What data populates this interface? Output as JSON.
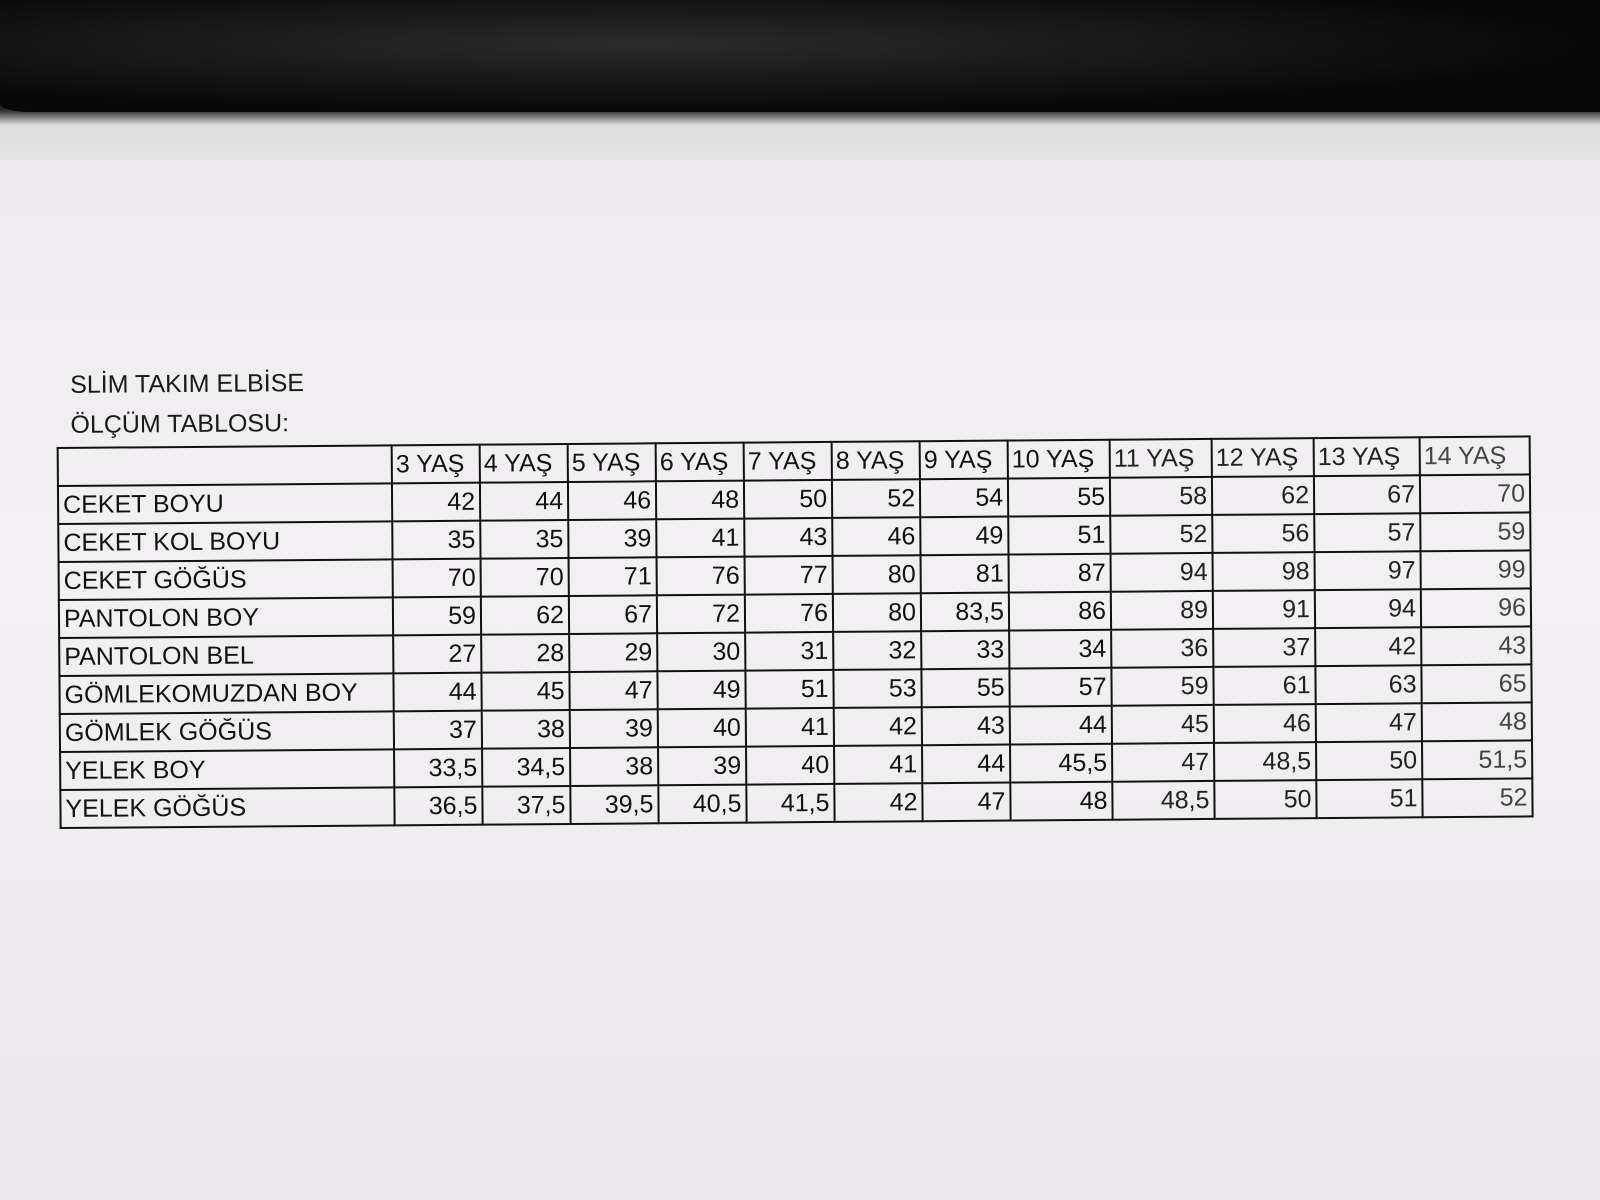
{
  "document": {
    "title_line1": "SLİM TAKIM ELBİSE",
    "title_line2": "ÖLÇÜM TABLOSU:",
    "columns": [
      "3 YAŞ",
      "4 YAŞ",
      "5 YAŞ",
      "6 YAŞ",
      "7 YAŞ",
      "8 YAŞ",
      "9 YAŞ",
      "10 YAŞ",
      "11 YAŞ",
      "12 YAŞ",
      "13 YAŞ",
      "14 YAŞ"
    ],
    "rows": [
      {
        "label": "CEKET BOYU",
        "values": [
          "42",
          "44",
          "46",
          "48",
          "50",
          "52",
          "54",
          "55",
          "58",
          "62",
          "67",
          "70"
        ]
      },
      {
        "label": "CEKET KOL BOYU",
        "values": [
          "35",
          "35",
          "39",
          "41",
          "43",
          "46",
          "49",
          "51",
          "52",
          "56",
          "57",
          "59"
        ]
      },
      {
        "label": "CEKET GÖĞÜS",
        "values": [
          "70",
          "70",
          "71",
          "76",
          "77",
          "80",
          "81",
          "87",
          "94",
          "98",
          "97",
          "99"
        ]
      },
      {
        "label": "PANTOLON BOY",
        "values": [
          "59",
          "62",
          "67",
          "72",
          "76",
          "80",
          "83,5",
          "86",
          "89",
          "91",
          "94",
          "96"
        ]
      },
      {
        "label": "PANTOLON BEL",
        "values": [
          "27",
          "28",
          "29",
          "30",
          "31",
          "32",
          "33",
          "34",
          "36",
          "37",
          "42",
          "43"
        ]
      },
      {
        "label": "GÖMLEKOMUZDAN BOY",
        "values": [
          "44",
          "45",
          "47",
          "49",
          "51",
          "53",
          "55",
          "57",
          "59",
          "61",
          "63",
          "65"
        ]
      },
      {
        "label": "GÖMLEK GÖĞÜS",
        "values": [
          "37",
          "38",
          "39",
          "40",
          "41",
          "42",
          "43",
          "44",
          "45",
          "46",
          "47",
          "48"
        ]
      },
      {
        "label": "YELEK BOY",
        "values": [
          "33,5",
          "34,5",
          "38",
          "39",
          "40",
          "41",
          "44",
          "45,5",
          "47",
          "48,5",
          "50",
          "51,5"
        ]
      },
      {
        "label": "YELEK GÖĞÜS",
        "values": [
          "36,5",
          "37,5",
          "39,5",
          "40,5",
          "41,5",
          "42",
          "47",
          "48",
          "48,5",
          "50",
          "51",
          "52"
        ]
      }
    ]
  }
}
